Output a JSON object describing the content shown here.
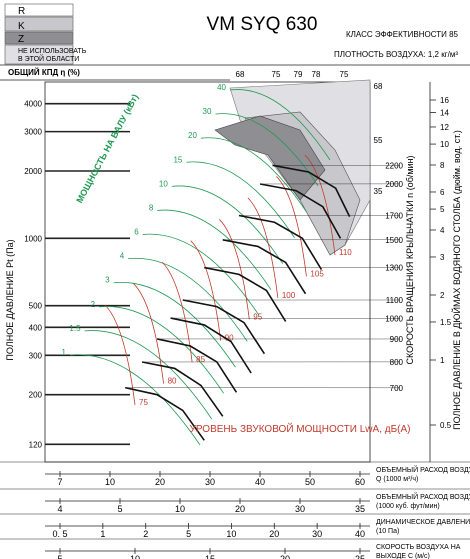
{
  "chart_data": {
    "type": "line",
    "title": "VM SYQ 630",
    "efficiency_class": "КЛАСС ЭФФЕКТИВНОСТИ 85",
    "air_density": "ПЛОТНОСТЬ ВОЗДУХА: 1,2 кг/м³",
    "legend": [
      {
        "label": "R",
        "color": "#ffffff"
      },
      {
        "label": "K",
        "color": "#c8c8cc"
      },
      {
        "label": "Z",
        "color": "#8e8e93"
      },
      {
        "label": "НЕ ИСПОЛЬЗОВАТЬ В ЭТОЙ ОБЛАСТИ",
        "color": "#e0e0e4"
      }
    ],
    "efficiency_axis_label": "ОБЩИЙ КПД η (%)",
    "efficiency_ticks": [
      "68",
      "75",
      "79",
      "78",
      "75"
    ],
    "efficiency_ticks_right": [
      "68",
      "55",
      "35"
    ],
    "ylabel": "ПОЛНОЕ ДАВЛЕНИЕ Pt (Па)",
    "yticks": [
      120,
      200,
      300,
      400,
      500,
      1000,
      2000,
      3000,
      4000
    ],
    "ylim": [
      100,
      5000
    ],
    "yscale": "log",
    "xscale": "log",
    "rpm_label": "СКОРОСТЬ ВРАЩЕНИЯ КРЫЛЬЧАТКИ n (об/мин)",
    "rpm_ticks": [
      700,
      800,
      900,
      1000,
      1100,
      1300,
      1500,
      1700,
      2000,
      2200
    ],
    "right_label": "ПОЛНОЕ ДАВЛЕНИЕ В ДЮЙМАХ ВОДЯНОГО СТОЛБА (дюйм. вод. ст.)",
    "right_ticks": [
      "0.5",
      "1",
      "1.5",
      "2",
      "3",
      "4",
      "5",
      "6",
      "8",
      "10",
      "12",
      "14",
      "16"
    ],
    "power_label": "МОЩНОСТЬ НА ВАЛУ (кВт)",
    "power_curves": [
      "1",
      "1.5",
      "2",
      "3",
      "4",
      "6",
      "8",
      "10",
      "15",
      "20",
      "30",
      "40"
    ],
    "sound_label": "УРОВЕНЬ ЗВУКОВОЙ МОЩНОСТИ LwA, дБ(А)",
    "sound_curves": [
      "75",
      "80",
      "85",
      "90",
      "95",
      "100",
      "105",
      "110"
    ],
    "x_axes": [
      {
        "label": "ОБЪЕМНЫЙ РАСХОД ВОЗДУХА Q (1000 м³/ч)",
        "ticks": [
          "7",
          "10",
          "20",
          "30",
          "40",
          "50",
          "60"
        ]
      },
      {
        "label": "ОБЪЕМНЫЙ РАСХОД ВОЗДУХА Q (1000 куб. фут/мин)",
        "ticks": [
          "4",
          "5",
          "10",
          "20",
          "30",
          "35"
        ]
      },
      {
        "label": "ДИНАМИЧЕСКОЕ ДАВЛЕНИЕ Pd (10 Па)",
        "ticks": [
          "0. 5",
          "1",
          "2",
          "5",
          "10",
          "20",
          "30",
          "40"
        ]
      },
      {
        "label": "СКОРОСТЬ ВОЗДУХА НА ВЫХОДЕ C (м/с)",
        "ticks": [
          "5",
          "10",
          "15",
          "20",
          "25"
        ]
      }
    ],
    "speed_curves": [
      {
        "rpm": 700,
        "points": [
          [
            11.0,
            215
          ],
          [
            14.0,
            200
          ],
          [
            17.0,
            170
          ],
          [
            20.0,
            125
          ]
        ]
      },
      {
        "rpm": 800,
        "points": [
          [
            12.5,
            280
          ],
          [
            16.0,
            262
          ],
          [
            19.5,
            220
          ],
          [
            23.0,
            160
          ]
        ]
      },
      {
        "rpm": 900,
        "points": [
          [
            14.0,
            355
          ],
          [
            18.0,
            330
          ],
          [
            22.0,
            280
          ],
          [
            25.5,
            205
          ]
        ]
      },
      {
        "rpm": 1000,
        "points": [
          [
            15.5,
            440
          ],
          [
            20.0,
            410
          ],
          [
            24.5,
            345
          ],
          [
            28.5,
            250
          ]
        ]
      },
      {
        "rpm": 1100,
        "points": [
          [
            17.0,
            530
          ],
          [
            22.0,
            495
          ],
          [
            27.0,
            420
          ],
          [
            31.5,
            305
          ]
        ]
      },
      {
        "rpm": 1300,
        "points": [
          [
            20.0,
            740
          ],
          [
            26.0,
            690
          ],
          [
            32.0,
            585
          ],
          [
            37.0,
            425
          ]
        ]
      },
      {
        "rpm": 1500,
        "points": [
          [
            23.0,
            985
          ],
          [
            30.0,
            920
          ],
          [
            37.0,
            780
          ],
          [
            43.0,
            565
          ]
        ]
      },
      {
        "rpm": 1700,
        "points": [
          [
            26.0,
            1265
          ],
          [
            34.0,
            1180
          ],
          [
            42.0,
            1000
          ],
          [
            48.5,
            725
          ]
        ]
      },
      {
        "rpm": 2000,
        "points": [
          [
            30.5,
            1750
          ],
          [
            40.0,
            1635
          ],
          [
            49.0,
            1385
          ],
          [
            56.0,
            1000
          ]
        ]
      },
      {
        "rpm": 2200,
        "points": [
          [
            33.5,
            2120
          ],
          [
            44.0,
            1980
          ],
          [
            54.0,
            1675
          ],
          [
            60.0,
            1250
          ]
        ]
      }
    ]
  }
}
